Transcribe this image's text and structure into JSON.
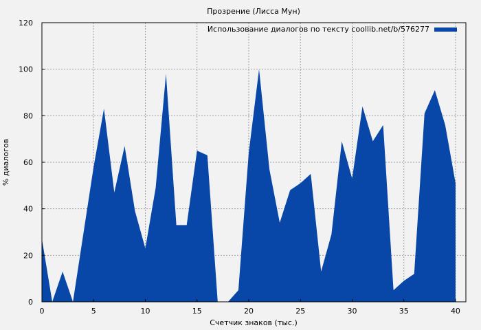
{
  "chart_data": {
    "type": "area",
    "title": "Прозрение (Лисса Мун)",
    "xlabel": "Счетчик знаков (тыс.)",
    "ylabel": "% диалогов",
    "xlim": [
      0,
      41
    ],
    "ylim": [
      0,
      120
    ],
    "x_ticks": [
      0,
      5,
      10,
      15,
      20,
      25,
      30,
      35,
      40
    ],
    "y_ticks": [
      0,
      20,
      40,
      60,
      80,
      100,
      120
    ],
    "grid": true,
    "legend_position": "top-right",
    "colors": {
      "series": "#0847a8",
      "background": "#f2f2f2",
      "grid": "#a0a0a0"
    },
    "series": [
      {
        "name": "Использование диалогов по тексту coollib.net/b/576277",
        "x": [
          0,
          1,
          2,
          3,
          4,
          5,
          6,
          7,
          8,
          9,
          10,
          11,
          12,
          13,
          14,
          15,
          16,
          17,
          18,
          19,
          20,
          21,
          22,
          23,
          24,
          25,
          26,
          27,
          28,
          29,
          30,
          31,
          32,
          33,
          34,
          35,
          36,
          37,
          38,
          39,
          40
        ],
        "values": [
          27,
          0,
          13,
          0,
          29,
          58,
          83,
          47,
          67,
          39,
          23,
          49,
          98,
          33,
          33,
          65,
          63,
          0,
          0,
          5,
          64,
          100,
          57,
          34,
          48,
          51,
          55,
          13,
          29,
          69,
          53,
          84,
          69,
          76,
          5,
          9,
          12,
          81,
          91,
          76,
          51
        ]
      }
    ]
  }
}
